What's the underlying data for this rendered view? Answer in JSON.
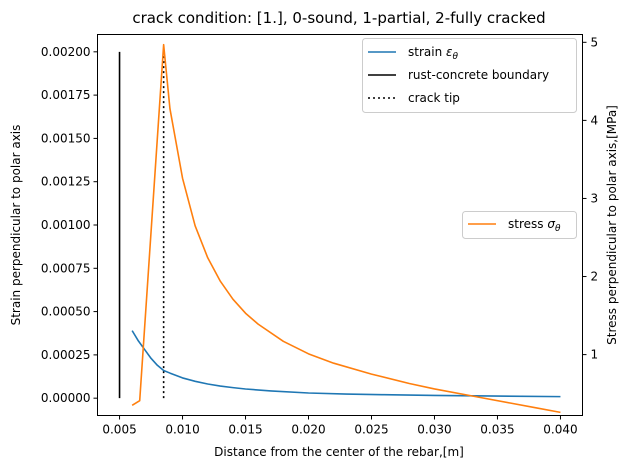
{
  "chart_data": {
    "type": "line",
    "title": "crack condition: [1.], 0-sound, 1-partial, 2-fully cracked",
    "xlabel": "Distance from the center of the rebar,[m]",
    "ylabel_left": "Strain perpendicular to polar axis",
    "ylabel_right": "Stress perpendicular to polar axis,[MPa]",
    "xlim": [
      0.00325,
      0.04175
    ],
    "ylim_left": [
      -0.0001,
      0.0021
    ],
    "ylim_right": [
      0.22,
      5.1
    ],
    "x_ticks": [
      "0.005",
      "0.010",
      "0.015",
      "0.020",
      "0.025",
      "0.030",
      "0.035",
      "0.040"
    ],
    "x_tick_values": [
      0.005,
      0.01,
      0.015,
      0.02,
      0.025,
      0.03,
      0.035,
      0.04
    ],
    "y_left_ticks": [
      "0.00000",
      "0.00025",
      "0.00050",
      "0.00075",
      "0.00100",
      "0.00125",
      "0.00150",
      "0.00175",
      "0.00200"
    ],
    "y_left_tick_values": [
      0,
      0.00025,
      0.0005,
      0.00075,
      0.001,
      0.00125,
      0.0015,
      0.00175,
      0.002
    ],
    "y_right_ticks": [
      "1",
      "2",
      "3",
      "4",
      "5"
    ],
    "y_right_tick_values": [
      1,
      2,
      3,
      4,
      5
    ],
    "colors": {
      "strain": "#1f77b4",
      "stress": "#ff7f0e",
      "boundary": "#000000",
      "crack_tip": "#000000"
    },
    "legend_top_right": [
      {
        "label": "strain ",
        "math": "ε",
        "sub": "θ",
        "style": "solid",
        "color": "#1f77b4"
      },
      {
        "label": "rust-concrete boundary",
        "math": "",
        "sub": "",
        "style": "solid",
        "color": "#000000"
      },
      {
        "label": "crack tip",
        "math": "",
        "sub": "",
        "style": "dotted",
        "color": "#000000"
      }
    ],
    "legend_right": [
      {
        "label": "stress ",
        "math": "σ",
        "sub": "θ",
        "style": "solid",
        "color": "#ff7f0e"
      }
    ],
    "series": [
      {
        "name": "strain εθ",
        "axis": "left",
        "x": [
          0.006,
          0.0065,
          0.007,
          0.0075,
          0.008,
          0.0085,
          0.009,
          0.01,
          0.011,
          0.012,
          0.013,
          0.014,
          0.015,
          0.017,
          0.02,
          0.023,
          0.026,
          0.03,
          0.035,
          0.04
        ],
        "y": [
          0.00039,
          0.00033,
          0.00028,
          0.00023,
          0.00019,
          0.00016,
          0.000145,
          0.000117,
          9.75e-05,
          8.2e-05,
          7e-05,
          6.1e-05,
          5.3e-05,
          4.2e-05,
          3e-05,
          2.4e-05,
          2e-05,
          1.6e-05,
          1.2e-05,
          9e-06
        ]
      },
      {
        "name": "stress σθ",
        "axis": "right",
        "x": [
          0.006,
          0.0066,
          0.0085,
          0.009,
          0.01,
          0.011,
          0.012,
          0.013,
          0.014,
          0.015,
          0.016,
          0.018,
          0.02,
          0.022,
          0.025,
          0.028,
          0.03,
          0.033,
          0.036,
          0.038,
          0.04
        ],
        "y": [
          0.35,
          0.41,
          4.97,
          4.15,
          3.26,
          2.65,
          2.24,
          1.94,
          1.71,
          1.53,
          1.39,
          1.17,
          1.01,
          0.89,
          0.75,
          0.63,
          0.56,
          0.47,
          0.38,
          0.32,
          0.26
        ]
      }
    ],
    "vlines": [
      {
        "name": "rust-concrete boundary",
        "x": 0.005,
        "y_range": [
          0,
          0.002
        ],
        "axis": "left",
        "style": "solid"
      },
      {
        "name": "crack tip",
        "x": 0.0085,
        "y_range": [
          0,
          0.002
        ],
        "axis": "left",
        "style": "dotted"
      }
    ],
    "grid": false
  }
}
